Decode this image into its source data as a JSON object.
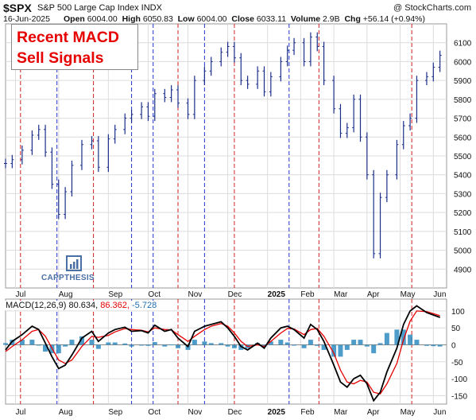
{
  "header": {
    "symbol": "$SPX",
    "name": "S&P 500 Large Cap Index  INDX",
    "watermark": "@ StockCharts.com",
    "date": "16-Jun-2025",
    "open_label": "Open",
    "open": "6004.00",
    "high_label": "High",
    "high": "6050.83",
    "low_label": "Low",
    "low": "6004.00",
    "close_label": "Close",
    "close": "6033.11",
    "volume_label": "Volume",
    "volume": "2.9B",
    "chg_label": "Chg",
    "chg": "+56.14 (+0.94%)"
  },
  "callout": {
    "line1": "Recent MACD",
    "line2": "Sell Signals"
  },
  "logo": {
    "text": "CAPPTHESIS"
  },
  "macd_legend": {
    "label": "MACD(12,26,9)",
    "macd": "80.634,",
    "signal": "86.362,",
    "histogram": "-5.728"
  },
  "colors": {
    "price": "#1a2f8a",
    "signal": "#e60000",
    "macd": "#000000",
    "histogram": "#2e8bc0",
    "sell_line": "#d42020",
    "buy_line": "#2233cc",
    "grid": "#dcdcdc"
  },
  "chart_data": [
    {
      "type": "ohlc",
      "title": "S&P 500 Large Cap Index",
      "ylim": [
        4800,
        6200
      ],
      "y_ticks": [
        "4900",
        "5000",
        "5100",
        "5200",
        "5300",
        "5400",
        "5500",
        "5600",
        "5700",
        "5800",
        "5900",
        "6000",
        "6100"
      ],
      "x_labels": [
        "Jul",
        "Aug",
        "Sep",
        "Oct",
        "Nov",
        "Dec",
        "2025",
        "Feb",
        "Mar",
        "Apr",
        "May",
        "Jun"
      ],
      "x_label_positions": [
        0.03,
        0.16,
        0.31,
        0.43,
        0.55,
        0.67,
        0.79,
        0.89,
        0.99,
        1.09,
        1.19,
        1.29
      ],
      "series": [
        {
          "name": "$SPX",
          "x": [
            0.0,
            0.02,
            0.05,
            0.08,
            0.1,
            0.12,
            0.14,
            0.16,
            0.18,
            0.2,
            0.23,
            0.26,
            0.28,
            0.31,
            0.33,
            0.36,
            0.38,
            0.41,
            0.43,
            0.45,
            0.48,
            0.5,
            0.52,
            0.55,
            0.57,
            0.6,
            0.62,
            0.65,
            0.67,
            0.69,
            0.71,
            0.73,
            0.76,
            0.78,
            0.8,
            0.83,
            0.85,
            0.87,
            0.9,
            0.92,
            0.94,
            0.96,
            0.99,
            1.01,
            1.03,
            1.05,
            1.07,
            1.09,
            1.11,
            1.13,
            1.15,
            1.18,
            1.2,
            1.22,
            1.24,
            1.27,
            1.29,
            1.31
          ],
          "close": [
            5460,
            5480,
            5530,
            5610,
            5640,
            5520,
            5350,
            5190,
            5310,
            5450,
            5560,
            5580,
            5440,
            5590,
            5640,
            5700,
            5720,
            5760,
            5710,
            5830,
            5810,
            5850,
            5780,
            5720,
            5900,
            5950,
            6000,
            6050,
            6080,
            6020,
            5900,
            5880,
            5950,
            5840,
            5920,
            6000,
            6060,
            6100,
            6000,
            6130,
            6080,
            5900,
            5750,
            5620,
            5650,
            5800,
            5600,
            5400,
            4982,
            5280,
            5400,
            5560,
            5660,
            5700,
            5900,
            5920,
            5970,
            6033
          ]
        }
      ]
    },
    {
      "type": "macd",
      "ylim": [
        -175,
        135
      ],
      "y_ticks": [
        "-150",
        "-100",
        "-50",
        "0",
        "50",
        "100"
      ],
      "series": [
        {
          "name": "MACD",
          "values": [
            -15,
            10,
            30,
            55,
            45,
            5,
            -35,
            -70,
            -60,
            -30,
            20,
            40,
            10,
            35,
            45,
            52,
            40,
            42,
            35,
            58,
            40,
            45,
            20,
            -5,
            40,
            55,
            60,
            68,
            50,
            25,
            -5,
            -15,
            5,
            -10,
            20,
            50,
            55,
            45,
            20,
            60,
            45,
            10,
            -60,
            -110,
            -125,
            -100,
            -90,
            -115,
            -165,
            -140,
            -80,
            -10,
            60,
            100,
            115,
            95,
            88,
            81
          ]
        },
        {
          "name": "Signal",
          "values": [
            -20,
            -5,
            15,
            40,
            45,
            25,
            -10,
            -45,
            -55,
            -45,
            -5,
            25,
            22,
            28,
            38,
            48,
            45,
            43,
            38,
            50,
            45,
            44,
            30,
            10,
            25,
            45,
            55,
            63,
            55,
            35,
            10,
            -5,
            0,
            -5,
            10,
            35,
            48,
            47,
            30,
            45,
            48,
            25,
            -25,
            -75,
            -110,
            -115,
            -105,
            -110,
            -140,
            -145,
            -115,
            -55,
            15,
            70,
            100,
            98,
            92,
            86
          ]
        }
      ]
    }
  ],
  "sell_signals": [
    0.045,
    0.265,
    0.52,
    0.69,
    0.945,
    1.225
  ],
  "buy_signals": [
    0.155,
    0.38,
    0.445,
    0.6,
    0.855
  ]
}
